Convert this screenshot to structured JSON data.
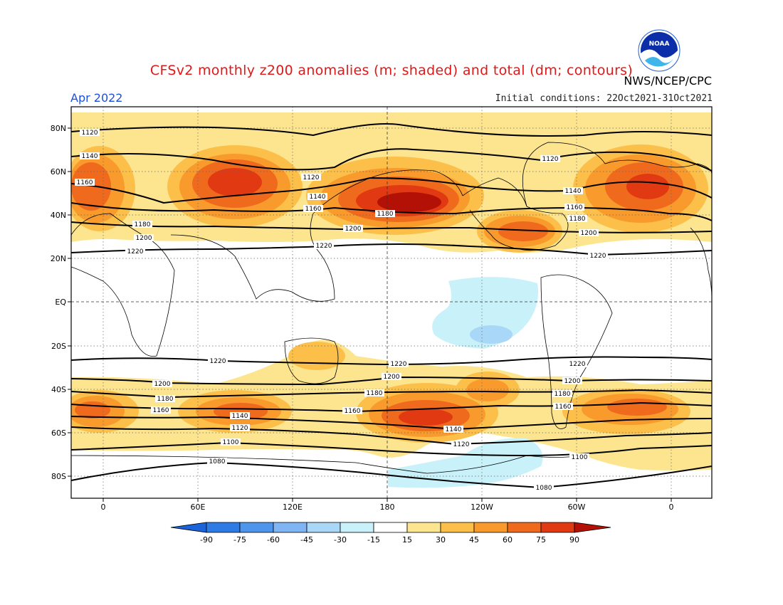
{
  "title": "CFSv2 monthly z200 anomalies (m; shaded) and total (dm; contours)",
  "valid_month": "Apr 2022",
  "initial_conditions": "Initial conditions: 22Oct2021-31Oct2021",
  "agency": "NWS/NCEP/CPC",
  "logo_text": "NOAA",
  "lat_labels": [
    "80N",
    "60N",
    "40N",
    "20N",
    "EQ",
    "20S",
    "40S",
    "60S",
    "80S"
  ],
  "lon_labels": [
    "0",
    "60E",
    "120E",
    "180",
    "120W",
    "60W",
    "0"
  ],
  "colorbar": {
    "labels": [
      "-90",
      "-75",
      "-60",
      "-45",
      "-30",
      "-15",
      "15",
      "30",
      "45",
      "60",
      "75",
      "90"
    ],
    "colors": [
      "#1a63d8",
      "#2f7be6",
      "#4e95ec",
      "#7eb5f2",
      "#a9d7f7",
      "#c9f1f9",
      "#ffffff",
      "#fde58f",
      "#fcc04a",
      "#f99a2c",
      "#f06a1e",
      "#e13a12",
      "#b31006"
    ]
  },
  "contours": {
    "north": [
      {
        "value": "1120",
        "label_text": "1120"
      },
      {
        "value": "1140",
        "label_text": "1140"
      },
      {
        "value": "1160",
        "label_text": "1160"
      },
      {
        "value": "1180",
        "label_text": "1180"
      },
      {
        "value": "1200",
        "label_text": "1200"
      },
      {
        "value": "1220",
        "label_text": "1220"
      }
    ],
    "south": [
      {
        "value": "1220",
        "label_text": "1220"
      },
      {
        "value": "1200",
        "label_text": "1200"
      },
      {
        "value": "1180",
        "label_text": "1180"
      },
      {
        "value": "1160",
        "label_text": "1160"
      },
      {
        "value": "1140",
        "label_text": "1140"
      },
      {
        "value": "1120",
        "label_text": "1120"
      },
      {
        "value": "1100",
        "label_text": "1100"
      },
      {
        "value": "1080",
        "label_text": "1080"
      }
    ]
  }
}
